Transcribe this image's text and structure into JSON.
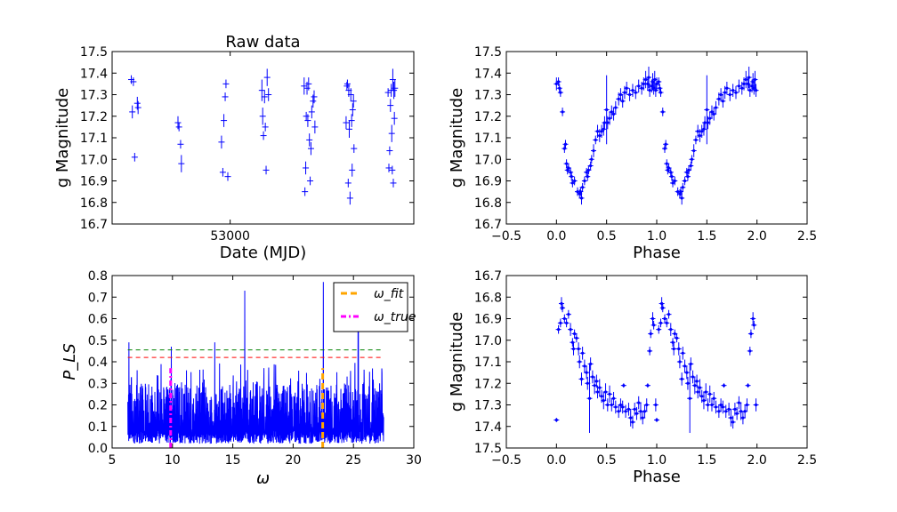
{
  "chart_data": [
    {
      "type": "scatter",
      "title": "Raw data",
      "xlabel": "Date (MJD)",
      "ylabel": "g Magnitude",
      "xlim": [
        52550,
        53700
      ],
      "ylim": [
        16.7,
        17.5
      ],
      "x_ticks": [
        53000
      ],
      "x_tick_labels": [
        "53000"
      ],
      "y_ticks": [
        16.7,
        16.8,
        16.9,
        17.0,
        17.1,
        17.2,
        17.3,
        17.4,
        17.5
      ],
      "y_tick_labels": [
        "16.7",
        "16.8",
        "16.9",
        "17.0",
        "17.1",
        "17.2",
        "17.3",
        "17.4",
        "17.5"
      ],
      "error_bars": true,
      "color": "#0000ff",
      "points": [
        {
          "x": 52623,
          "y": 17.37,
          "yerr": 0.02
        },
        {
          "x": 52627,
          "y": 17.22,
          "yerr": 0.03
        },
        {
          "x": 52631,
          "y": 17.36,
          "yerr": 0.02
        },
        {
          "x": 52636,
          "y": 17.01,
          "yerr": 0.02
        },
        {
          "x": 52646,
          "y": 17.26,
          "yerr": 0.03
        },
        {
          "x": 52649,
          "y": 17.24,
          "yerr": 0.03
        },
        {
          "x": 52801,
          "y": 17.17,
          "yerr": 0.03
        },
        {
          "x": 52805,
          "y": 17.15,
          "yerr": 0.02
        },
        {
          "x": 52811,
          "y": 17.07,
          "yerr": 0.02
        },
        {
          "x": 52814,
          "y": 16.98,
          "yerr": 0.04
        },
        {
          "x": 52967,
          "y": 17.08,
          "yerr": 0.03
        },
        {
          "x": 52972,
          "y": 16.94,
          "yerr": 0.02
        },
        {
          "x": 52976,
          "y": 17.18,
          "yerr": 0.03
        },
        {
          "x": 52981,
          "y": 17.29,
          "yerr": 0.02
        },
        {
          "x": 52984,
          "y": 17.35,
          "yerr": 0.02
        },
        {
          "x": 52991,
          "y": 16.92,
          "yerr": 0.02
        },
        {
          "x": 53121,
          "y": 17.32,
          "yerr": 0.05
        },
        {
          "x": 53124,
          "y": 17.2,
          "yerr": 0.04
        },
        {
          "x": 53127,
          "y": 17.11,
          "yerr": 0.02
        },
        {
          "x": 53131,
          "y": 17.29,
          "yerr": 0.03
        },
        {
          "x": 53134,
          "y": 17.15,
          "yerr": 0.02
        },
        {
          "x": 53137,
          "y": 16.95,
          "yerr": 0.02
        },
        {
          "x": 53141,
          "y": 17.38,
          "yerr": 0.04
        },
        {
          "x": 53146,
          "y": 17.3,
          "yerr": 0.03
        },
        {
          "x": 53282,
          "y": 17.34,
          "yerr": 0.04
        },
        {
          "x": 53285,
          "y": 16.85,
          "yerr": 0.02
        },
        {
          "x": 53288,
          "y": 16.96,
          "yerr": 0.03
        },
        {
          "x": 53290,
          "y": 17.2,
          "yerr": 0.02
        },
        {
          "x": 53293,
          "y": 17.33,
          "yerr": 0.03
        },
        {
          "x": 53296,
          "y": 17.18,
          "yerr": 0.03
        },
        {
          "x": 53299,
          "y": 17.35,
          "yerr": 0.03
        },
        {
          "x": 53302,
          "y": 17.09,
          "yerr": 0.03
        },
        {
          "x": 53305,
          "y": 16.9,
          "yerr": 0.02
        },
        {
          "x": 53308,
          "y": 17.05,
          "yerr": 0.03
        },
        {
          "x": 53311,
          "y": 17.22,
          "yerr": 0.03
        },
        {
          "x": 53316,
          "y": 17.27,
          "yerr": 0.03
        },
        {
          "x": 53320,
          "y": 17.29,
          "yerr": 0.03
        },
        {
          "x": 53323,
          "y": 17.15,
          "yerr": 0.03
        },
        {
          "x": 53442,
          "y": 17.17,
          "yerr": 0.03
        },
        {
          "x": 53445,
          "y": 17.34,
          "yerr": 0.02
        },
        {
          "x": 53447,
          "y": 17.35,
          "yerr": 0.02
        },
        {
          "x": 53450,
          "y": 16.89,
          "yerr": 0.02
        },
        {
          "x": 53452,
          "y": 17.32,
          "yerr": 0.03
        },
        {
          "x": 53454,
          "y": 17.14,
          "yerr": 0.04
        },
        {
          "x": 53457,
          "y": 16.82,
          "yerr": 0.03
        },
        {
          "x": 53460,
          "y": 17.3,
          "yerr": 0.03
        },
        {
          "x": 53463,
          "y": 17.18,
          "yerr": 0.03
        },
        {
          "x": 53465,
          "y": 16.95,
          "yerr": 0.03
        },
        {
          "x": 53467,
          "y": 17.23,
          "yerr": 0.03
        },
        {
          "x": 53470,
          "y": 17.27,
          "yerr": 0.03
        },
        {
          "x": 53472,
          "y": 17.05,
          "yerr": 0.02
        },
        {
          "x": 53602,
          "y": 17.31,
          "yerr": 0.02
        },
        {
          "x": 53605,
          "y": 16.96,
          "yerr": 0.02
        },
        {
          "x": 53608,
          "y": 17.04,
          "yerr": 0.02
        },
        {
          "x": 53611,
          "y": 17.25,
          "yerr": 0.03
        },
        {
          "x": 53614,
          "y": 17.32,
          "yerr": 0.03
        },
        {
          "x": 53616,
          "y": 17.12,
          "yerr": 0.04
        },
        {
          "x": 53618,
          "y": 16.95,
          "yerr": 0.02
        },
        {
          "x": 53620,
          "y": 17.37,
          "yerr": 0.05
        },
        {
          "x": 53622,
          "y": 16.89,
          "yerr": 0.02
        },
        {
          "x": 53624,
          "y": 17.32,
          "yerr": 0.04
        },
        {
          "x": 53626,
          "y": 17.19,
          "yerr": 0.03
        },
        {
          "x": 53628,
          "y": 17.33,
          "yerr": 0.04
        }
      ]
    },
    {
      "type": "scatter",
      "title": "",
      "xlabel": "Phase",
      "ylabel": "g Magnitude",
      "xlim": [
        -0.5,
        2.5
      ],
      "ylim": [
        16.7,
        17.5
      ],
      "x_ticks": [
        -0.5,
        0.0,
        0.5,
        1.0,
        1.5,
        2.0,
        2.5
      ],
      "x_tick_labels": [
        "−0.5",
        "0.0",
        "0.5",
        "1.0",
        "1.5",
        "2.0",
        "2.5"
      ],
      "y_ticks": [
        16.7,
        16.8,
        16.9,
        17.0,
        17.1,
        17.2,
        17.3,
        17.4,
        17.5
      ],
      "y_tick_labels": [
        "16.7",
        "16.8",
        "16.9",
        "17.0",
        "17.1",
        "17.2",
        "17.3",
        "17.4",
        "17.5"
      ],
      "error_bars": true,
      "color": "#0000ff",
      "phase_points": [
        [
          0.0,
          17.35,
          0.03
        ],
        [
          0.02,
          17.36,
          0.02
        ],
        [
          0.03,
          17.33,
          0.02
        ],
        [
          0.04,
          17.31,
          0.02
        ],
        [
          0.06,
          17.22,
          0.02
        ],
        [
          0.08,
          17.05,
          0.02
        ],
        [
          0.09,
          17.07,
          0.02
        ],
        [
          0.1,
          16.98,
          0.02
        ],
        [
          0.11,
          16.95,
          0.02
        ],
        [
          0.12,
          16.96,
          0.02
        ],
        [
          0.14,
          16.94,
          0.02
        ],
        [
          0.15,
          16.92,
          0.02
        ],
        [
          0.16,
          16.89,
          0.02
        ],
        [
          0.18,
          16.9,
          0.02
        ],
        [
          0.21,
          16.85,
          0.02
        ],
        [
          0.23,
          16.84,
          0.02
        ],
        [
          0.24,
          16.85,
          0.02
        ],
        [
          0.25,
          16.82,
          0.03
        ],
        [
          0.26,
          16.87,
          0.02
        ],
        [
          0.28,
          16.9,
          0.02
        ],
        [
          0.3,
          16.94,
          0.02
        ],
        [
          0.31,
          16.92,
          0.02
        ],
        [
          0.32,
          16.95,
          0.02
        ],
        [
          0.34,
          16.97,
          0.02
        ],
        [
          0.35,
          17.0,
          0.02
        ],
        [
          0.37,
          17.04,
          0.03
        ],
        [
          0.39,
          17.09,
          0.02
        ],
        [
          0.41,
          17.13,
          0.03
        ],
        [
          0.43,
          17.11,
          0.03
        ],
        [
          0.45,
          17.13,
          0.03
        ],
        [
          0.47,
          17.14,
          0.03
        ],
        [
          0.48,
          17.17,
          0.03
        ],
        [
          0.5,
          17.23,
          0.16
        ],
        [
          0.51,
          17.17,
          0.03
        ],
        [
          0.53,
          17.19,
          0.03
        ],
        [
          0.55,
          17.22,
          0.03
        ],
        [
          0.57,
          17.21,
          0.03
        ],
        [
          0.59,
          17.24,
          0.03
        ],
        [
          0.62,
          17.28,
          0.03
        ],
        [
          0.64,
          17.3,
          0.03
        ],
        [
          0.66,
          17.27,
          0.03
        ],
        [
          0.68,
          17.31,
          0.03
        ],
        [
          0.7,
          17.33,
          0.03
        ],
        [
          0.73,
          17.3,
          0.03
        ],
        [
          0.76,
          17.32,
          0.03
        ],
        [
          0.79,
          17.31,
          0.03
        ],
        [
          0.82,
          17.34,
          0.03
        ],
        [
          0.85,
          17.33,
          0.03
        ],
        [
          0.87,
          17.35,
          0.03
        ],
        [
          0.89,
          17.37,
          0.04
        ],
        [
          0.91,
          17.35,
          0.03
        ],
        [
          0.92,
          17.38,
          0.05
        ],
        [
          0.93,
          17.32,
          0.03
        ],
        [
          0.95,
          17.34,
          0.03
        ],
        [
          0.96,
          17.36,
          0.04
        ],
        [
          0.97,
          17.33,
          0.03
        ],
        [
          0.98,
          17.37,
          0.04
        ],
        [
          0.99,
          17.32,
          0.03
        ]
      ]
    },
    {
      "type": "line",
      "title": "",
      "xlabel": "ω",
      "ylabel": "P_LS",
      "xlim": [
        5,
        30
      ],
      "ylim": [
        0.0,
        0.8
      ],
      "x_ticks": [
        5,
        10,
        15,
        20,
        25,
        30
      ],
      "x_tick_labels": [
        "5",
        "10",
        "15",
        "20",
        "25",
        "30"
      ],
      "y_ticks": [
        0.0,
        0.1,
        0.2,
        0.3,
        0.4,
        0.5,
        0.6,
        0.7,
        0.8
      ],
      "y_tick_labels": [
        "0.0",
        "0.1",
        "0.2",
        "0.3",
        "0.4",
        "0.5",
        "0.6",
        "0.7",
        "0.8"
      ],
      "color": "#0000ff",
      "periodogram": {
        "omega_range": [
          6.3,
          27.5
        ],
        "baseline_range": [
          0.05,
          0.3
        ],
        "peaks": [
          {
            "omega": 6.4,
            "power": 0.49
          },
          {
            "omega": 9.9,
            "power": 0.47
          },
          {
            "omega": 13.5,
            "power": 0.49
          },
          {
            "omega": 16.0,
            "power": 0.73
          },
          {
            "omega": 22.5,
            "power": 0.77
          },
          {
            "omega": 25.4,
            "power": 0.55
          }
        ]
      },
      "threshold_lines": [
        {
          "y": 0.455,
          "color": "#008000",
          "style": "dashed"
        },
        {
          "y": 0.42,
          "color": "#ff0000",
          "style": "dashed"
        }
      ],
      "vertical_markers": [
        {
          "x": 22.45,
          "color": "#ffa500",
          "style": "dashed",
          "legend": "ω_fit",
          "y_top": 0.37
        },
        {
          "x": 9.85,
          "color": "#ff00ff",
          "style": "dashdot",
          "legend": "ω_true",
          "y_top": 0.37
        }
      ],
      "legend_position": "top-right"
    },
    {
      "type": "scatter",
      "title": "",
      "xlabel": "Phase",
      "ylabel": "g Magnitude",
      "xlim": [
        -0.5,
        2.5
      ],
      "ylim": [
        16.7,
        17.5
      ],
      "y_inverted": true,
      "x_ticks": [
        -0.5,
        0.0,
        0.5,
        1.0,
        1.5,
        2.0,
        2.5
      ],
      "x_tick_labels": [
        "−0.5",
        "0.0",
        "0.5",
        "1.0",
        "1.5",
        "2.0",
        "2.5"
      ],
      "y_ticks": [
        16.7,
        16.8,
        16.9,
        17.0,
        17.1,
        17.2,
        17.3,
        17.4,
        17.5
      ],
      "y_tick_labels": [
        "16.7",
        "16.8",
        "16.9",
        "17.0",
        "17.1",
        "17.2",
        "17.3",
        "17.4",
        "17.5"
      ],
      "error_bars": true,
      "color": "#0000ff",
      "phase_points": [
        [
          0.0,
          17.37,
          0.01
        ],
        [
          0.02,
          16.95,
          0.02
        ],
        [
          0.04,
          16.92,
          0.02
        ],
        [
          0.05,
          16.83,
          0.03
        ],
        [
          0.06,
          16.85,
          0.02
        ],
        [
          0.08,
          16.9,
          0.02
        ],
        [
          0.1,
          16.92,
          0.02
        ],
        [
          0.12,
          16.88,
          0.02
        ],
        [
          0.14,
          16.95,
          0.03
        ],
        [
          0.16,
          17.01,
          0.02
        ],
        [
          0.17,
          17.04,
          0.03
        ],
        [
          0.18,
          16.97,
          0.02
        ],
        [
          0.2,
          16.99,
          0.02
        ],
        [
          0.22,
          17.04,
          0.03
        ],
        [
          0.23,
          17.1,
          0.03
        ],
        [
          0.25,
          17.18,
          0.03
        ],
        [
          0.26,
          17.06,
          0.03
        ],
        [
          0.28,
          17.12,
          0.03
        ],
        [
          0.3,
          17.15,
          0.03
        ],
        [
          0.31,
          17.2,
          0.03
        ],
        [
          0.33,
          17.27,
          0.16
        ],
        [
          0.34,
          17.11,
          0.03
        ],
        [
          0.36,
          17.17,
          0.03
        ],
        [
          0.38,
          17.21,
          0.04
        ],
        [
          0.4,
          17.19,
          0.03
        ],
        [
          0.41,
          17.24,
          0.03
        ],
        [
          0.43,
          17.22,
          0.04
        ],
        [
          0.45,
          17.26,
          0.03
        ],
        [
          0.47,
          17.28,
          0.04
        ],
        [
          0.49,
          17.24,
          0.04
        ],
        [
          0.51,
          17.3,
          0.03
        ],
        [
          0.53,
          17.25,
          0.04
        ],
        [
          0.55,
          17.3,
          0.03
        ],
        [
          0.57,
          17.27,
          0.03
        ],
        [
          0.59,
          17.31,
          0.03
        ],
        [
          0.62,
          17.33,
          0.03
        ],
        [
          0.64,
          17.3,
          0.03
        ],
        [
          0.66,
          17.31,
          0.03
        ],
        [
          0.67,
          17.21,
          0.01
        ],
        [
          0.69,
          17.33,
          0.03
        ],
        [
          0.72,
          17.32,
          0.03
        ],
        [
          0.74,
          17.36,
          0.04
        ],
        [
          0.76,
          17.38,
          0.03
        ],
        [
          0.78,
          17.32,
          0.03
        ],
        [
          0.8,
          17.34,
          0.03
        ],
        [
          0.82,
          17.29,
          0.03
        ],
        [
          0.84,
          17.33,
          0.04
        ],
        [
          0.86,
          17.36,
          0.03
        ],
        [
          0.88,
          17.33,
          0.03
        ],
        [
          0.9,
          17.3,
          0.03
        ],
        [
          0.91,
          17.21,
          0.01
        ],
        [
          0.93,
          17.05,
          0.02
        ],
        [
          0.94,
          16.97,
          0.02
        ],
        [
          0.96,
          16.9,
          0.03
        ],
        [
          0.97,
          16.93,
          0.02
        ],
        [
          0.99,
          17.3,
          0.03
        ]
      ]
    }
  ]
}
